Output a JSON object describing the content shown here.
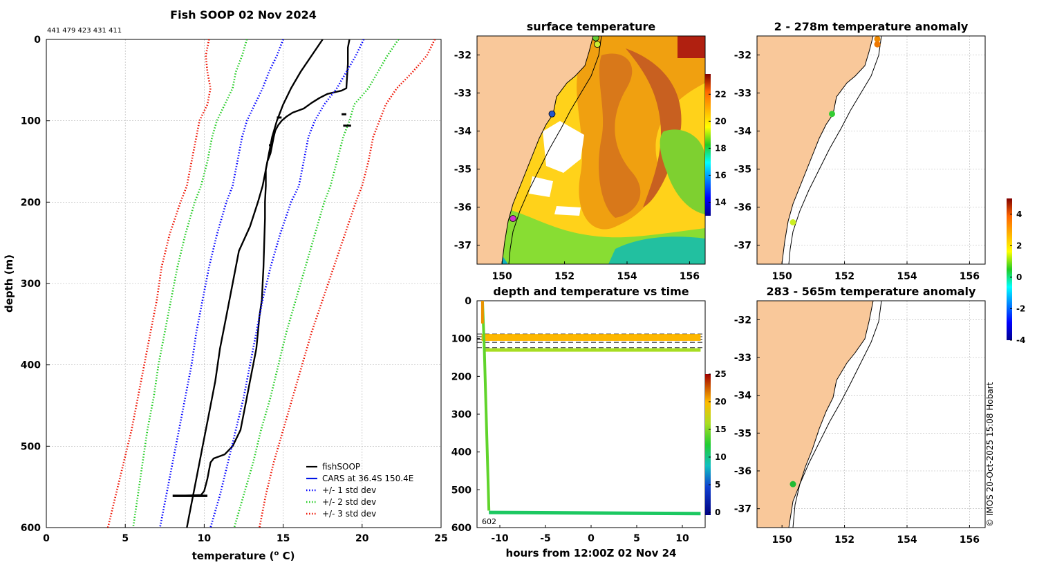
{
  "colors": {
    "land": "#f9c89a",
    "fishsoop": "#000000",
    "cars": "#0014e6",
    "std1": "#0000ff",
    "std2": "#22cc22",
    "std3": "#ee1100",
    "grid": "#b0b0b0"
  },
  "chart_data": [
    {
      "id": "profile",
      "type": "line",
      "title": "Fish SOOP 02 Nov 2024",
      "subtitle": "441 479 423 431 411",
      "xlabel": "temperature (",
      "xlabel_sup": "o",
      "xlabel_tail": " C)",
      "ylabel": "depth (m)",
      "xlim": [
        0,
        25
      ],
      "ylim": [
        0,
        600
      ],
      "xticks": [
        "0",
        "5",
        "10",
        "15",
        "20",
        "25"
      ],
      "yticks": [
        "0",
        "100",
        "200",
        "300",
        "400",
        "500",
        "600"
      ],
      "legend_position": "bottom-right",
      "legend": [
        "fishSOOP",
        "CARS at 36.4S 150.4E",
        "+/- 1 std dev",
        "+/- 2 std dev",
        "+/- 3 std dev"
      ],
      "series": [
        {
          "name": "fishSOOP",
          "style": "solid",
          "color": "black",
          "points": [
            [
              19.2,
              0
            ],
            [
              19.1,
              10
            ],
            [
              19.1,
              30
            ],
            [
              19.0,
              60
            ],
            [
              18.7,
              63
            ],
            [
              17.8,
              67
            ],
            [
              17.3,
              72
            ],
            [
              16.8,
              78
            ],
            [
              16.3,
              85
            ],
            [
              15.6,
              90
            ],
            [
              15.2,
              95
            ],
            [
              14.9,
              100
            ],
            [
              14.7,
              105
            ],
            [
              14.5,
              112
            ],
            [
              14.4,
              120
            ],
            [
              14.3,
              130
            ],
            [
              14.2,
              140
            ],
            [
              14.0,
              150
            ],
            [
              13.9,
              160
            ],
            [
              13.9,
              180
            ],
            [
              13.85,
              200
            ],
            [
              13.85,
              220
            ],
            [
              13.8,
              250
            ],
            [
              13.75,
              280
            ],
            [
              13.7,
              300
            ],
            [
              13.65,
              320
            ],
            [
              13.5,
              340
            ],
            [
              13.4,
              360
            ],
            [
              13.3,
              380
            ],
            [
              13.1,
              400
            ],
            [
              12.9,
              420
            ],
            [
              12.7,
              440
            ],
            [
              12.5,
              460
            ],
            [
              12.3,
              480
            ],
            [
              11.8,
              500
            ],
            [
              11.3,
              510
            ],
            [
              10.6,
              515
            ],
            [
              10.4,
              520
            ],
            [
              10.2,
              540
            ],
            [
              10.0,
              555
            ],
            [
              9.8,
              560
            ],
            [
              8.3,
              561
            ]
          ]
        },
        {
          "name": "CARS",
          "style": "solid",
          "color": "blue",
          "points": [
            [
              17.5,
              0
            ],
            [
              16.8,
              20
            ],
            [
              16.1,
              40
            ],
            [
              15.5,
              60
            ],
            [
              15.0,
              80
            ],
            [
              14.6,
              100
            ],
            [
              14.3,
              120
            ],
            [
              14.0,
              150
            ],
            [
              13.7,
              180
            ],
            [
              13.4,
              200
            ],
            [
              12.9,
              230
            ],
            [
              12.2,
              260
            ],
            [
              11.8,
              300
            ],
            [
              11.4,
              340
            ],
            [
              11.0,
              380
            ],
            [
              10.7,
              420
            ],
            [
              10.3,
              460
            ],
            [
              9.9,
              500
            ],
            [
              9.5,
              540
            ],
            [
              9.1,
              580
            ],
            [
              8.9,
              600
            ]
          ]
        },
        {
          "name": "std1_hi",
          "style": "dotted",
          "color": "std1",
          "points": [
            [
              20.1,
              0
            ],
            [
              19.6,
              20
            ],
            [
              19.0,
              40
            ],
            [
              18.4,
              60
            ],
            [
              17.6,
              80
            ],
            [
              17.0,
              100
            ],
            [
              16.6,
              120
            ],
            [
              16.3,
              150
            ],
            [
              16.0,
              180
            ],
            [
              15.5,
              200
            ],
            [
              14.8,
              240
            ],
            [
              14.2,
              280
            ],
            [
              13.7,
              320
            ],
            [
              13.3,
              360
            ],
            [
              12.9,
              400
            ],
            [
              12.5,
              440
            ],
            [
              12.0,
              480
            ],
            [
              11.5,
              520
            ],
            [
              11.0,
              560
            ],
            [
              10.4,
              600
            ]
          ]
        },
        {
          "name": "std1_lo",
          "style": "dotted",
          "color": "std1",
          "points": [
            [
              15.0,
              0
            ],
            [
              14.6,
              20
            ],
            [
              14.1,
              40
            ],
            [
              13.7,
              60
            ],
            [
              13.2,
              80
            ],
            [
              12.7,
              100
            ],
            [
              12.4,
              120
            ],
            [
              12.1,
              150
            ],
            [
              11.8,
              180
            ],
            [
              11.4,
              200
            ],
            [
              10.8,
              240
            ],
            [
              10.3,
              280
            ],
            [
              9.9,
              320
            ],
            [
              9.5,
              360
            ],
            [
              9.2,
              400
            ],
            [
              8.8,
              440
            ],
            [
              8.4,
              480
            ],
            [
              8.0,
              520
            ],
            [
              7.6,
              560
            ],
            [
              7.2,
              600
            ]
          ]
        },
        {
          "name": "std2_hi",
          "style": "dotted",
          "color": "std2",
          "points": [
            [
              22.3,
              0
            ],
            [
              21.6,
              20
            ],
            [
              21.0,
              40
            ],
            [
              20.4,
              60
            ],
            [
              19.5,
              80
            ],
            [
              19.2,
              100
            ],
            [
              18.8,
              120
            ],
            [
              18.4,
              150
            ],
            [
              18.0,
              180
            ],
            [
              17.6,
              200
            ],
            [
              17.0,
              240
            ],
            [
              16.4,
              280
            ],
            [
              15.8,
              320
            ],
            [
              15.2,
              360
            ],
            [
              14.7,
              400
            ],
            [
              14.2,
              440
            ],
            [
              13.6,
              480
            ],
            [
              13.1,
              520
            ],
            [
              12.5,
              560
            ],
            [
              11.9,
              600
            ]
          ]
        },
        {
          "name": "std2_lo",
          "style": "dotted",
          "color": "std2",
          "points": [
            [
              12.7,
              0
            ],
            [
              12.4,
              20
            ],
            [
              12.0,
              40
            ],
            [
              11.8,
              60
            ],
            [
              11.3,
              80
            ],
            [
              10.8,
              100
            ],
            [
              10.5,
              120
            ],
            [
              10.2,
              150
            ],
            [
              9.8,
              180
            ],
            [
              9.4,
              200
            ],
            [
              8.8,
              240
            ],
            [
              8.3,
              280
            ],
            [
              7.9,
              320
            ],
            [
              7.5,
              360
            ],
            [
              7.1,
              400
            ],
            [
              6.8,
              440
            ],
            [
              6.4,
              480
            ],
            [
              6.1,
              520
            ],
            [
              5.8,
              560
            ],
            [
              5.5,
              600
            ]
          ]
        },
        {
          "name": "std3_hi",
          "style": "dotted",
          "color": "std3",
          "points": [
            [
              24.6,
              0
            ],
            [
              24.1,
              20
            ],
            [
              23.2,
              40
            ],
            [
              22.2,
              60
            ],
            [
              21.5,
              80
            ],
            [
              21.1,
              100
            ],
            [
              20.7,
              120
            ],
            [
              20.4,
              150
            ],
            [
              20.0,
              180
            ],
            [
              19.6,
              200
            ],
            [
              18.9,
              240
            ],
            [
              18.2,
              280
            ],
            [
              17.5,
              320
            ],
            [
              16.8,
              360
            ],
            [
              16.2,
              400
            ],
            [
              15.6,
              440
            ],
            [
              15.0,
              480
            ],
            [
              14.4,
              520
            ],
            [
              13.9,
              560
            ],
            [
              13.5,
              600
            ]
          ]
        },
        {
          "name": "std3_lo",
          "style": "dotted",
          "color": "std3",
          "points": [
            [
              10.3,
              0
            ],
            [
              10.1,
              20
            ],
            [
              10.2,
              40
            ],
            [
              10.4,
              60
            ],
            [
              10.2,
              80
            ],
            [
              9.7,
              100
            ],
            [
              9.5,
              120
            ],
            [
              9.2,
              150
            ],
            [
              8.9,
              180
            ],
            [
              8.5,
              200
            ],
            [
              7.8,
              240
            ],
            [
              7.3,
              280
            ],
            [
              7.0,
              320
            ],
            [
              6.6,
              360
            ],
            [
              6.2,
              400
            ],
            [
              5.8,
              440
            ],
            [
              5.4,
              480
            ],
            [
              4.9,
              520
            ],
            [
              4.4,
              560
            ],
            [
              3.9,
              600
            ]
          ]
        }
      ],
      "extra_fragments": [
        {
          "x": [
            18.7,
            19.0
          ],
          "y": [
            92,
            92
          ]
        },
        {
          "x": [
            18.8,
            19.3
          ],
          "y": [
            106,
            106
          ]
        },
        {
          "x": [
            14.6,
            14.9
          ],
          "y": [
            96,
            96
          ]
        },
        {
          "x": [
            14.1,
            14.3
          ],
          "y": [
            130,
            130
          ]
        }
      ]
    },
    {
      "id": "sst",
      "type": "heatmap",
      "title": "surface temperature",
      "xlim": [
        149.2,
        156.5
      ],
      "ylim": [
        -37.5,
        -31.5
      ],
      "xticks": [
        "150",
        "152",
        "154",
        "156"
      ],
      "yticks": [
        "-32",
        "-33",
        "-34",
        "-35",
        "-36",
        "-37"
      ],
      "colorbar_ticks": [
        "14",
        "16",
        "18",
        "20",
        "22"
      ],
      "colorbar_range": [
        13,
        23.5
      ],
      "markers": [
        {
          "lon": 153.0,
          "lat": -31.55,
          "color": "#66cc33"
        },
        {
          "lon": 153.05,
          "lat": -31.72,
          "color": "#ccee33"
        },
        {
          "lon": 151.6,
          "lat": -33.55,
          "color": "#2255cc"
        },
        {
          "lon": 150.35,
          "lat": -36.3,
          "color": "#cc33cc"
        }
      ]
    },
    {
      "id": "anomaly_shallow",
      "type": "scatter",
      "title": "2 - 278m temperature anomaly",
      "xlim": [
        149.2,
        156.5
      ],
      "ylim": [
        -37.5,
        -31.5
      ],
      "xticks": [
        "150",
        "152",
        "154",
        "156"
      ],
      "yticks": [
        "-32",
        "-33",
        "-34",
        "-35",
        "-36",
        "-37"
      ],
      "points": [
        {
          "lon": 153.05,
          "lat": -31.58,
          "color": "#ee8800"
        },
        {
          "lon": 153.05,
          "lat": -31.72,
          "color": "#ee7700"
        },
        {
          "lon": 151.6,
          "lat": -33.55,
          "color": "#33cc33"
        },
        {
          "lon": 150.35,
          "lat": -36.4,
          "color": "#ccee22"
        }
      ]
    },
    {
      "id": "anomaly_deep",
      "type": "scatter",
      "title": "283 - 565m temperature anomaly",
      "xlim": [
        149.2,
        156.5
      ],
      "ylim": [
        -37.5,
        -31.5
      ],
      "xticks": [
        "150",
        "152",
        "154",
        "156"
      ],
      "yticks": [
        "-32",
        "-33",
        "-34",
        "-35",
        "-36",
        "-37"
      ],
      "points": [
        {
          "lon": 150.35,
          "lat": -36.35,
          "color": "#22bb33"
        }
      ]
    },
    {
      "id": "anomaly_colorbar",
      "type": "heatmap",
      "range": [
        -4,
        5
      ],
      "ticks": [
        "4",
        "2",
        "0",
        "-2",
        "-4"
      ]
    },
    {
      "id": "depth_time",
      "type": "line",
      "title": "depth and temperature vs time",
      "xlabel": "hours from 12:00Z 02 Nov 24",
      "xlim": [
        -12.5,
        12.5
      ],
      "ylim": [
        0,
        600
      ],
      "xticks": [
        "-10",
        "-5",
        "0",
        "5",
        "10"
      ],
      "yticks": [
        "0",
        "100",
        "200",
        "300",
        "400",
        "500",
        "600"
      ],
      "colorbar_ticks": [
        "0",
        "5",
        "10",
        "15",
        "20",
        "25"
      ],
      "colorbar_range": [
        -0.5,
        25
      ],
      "bottom_label": "602",
      "reference_depths": [
        88,
        95,
        102,
        110,
        124
      ],
      "series": [
        {
          "name": "shallow logger",
          "depth": 97,
          "temperature": 20
        },
        {
          "name": "mid logger",
          "depth": 130,
          "temperature": 16
        },
        {
          "name": "descent",
          "points": [
            [
              -11.9,
              0
            ],
            [
              -11.7,
              130
            ],
            [
              -11.2,
              555
            ]
          ],
          "temperature": 14
        },
        {
          "name": "deep logger",
          "depth_start": 560,
          "depth_end": 563,
          "temperature": 11
        }
      ]
    }
  ],
  "credit": "© IMOS 20-Oct-2025 15:08 Hobart"
}
